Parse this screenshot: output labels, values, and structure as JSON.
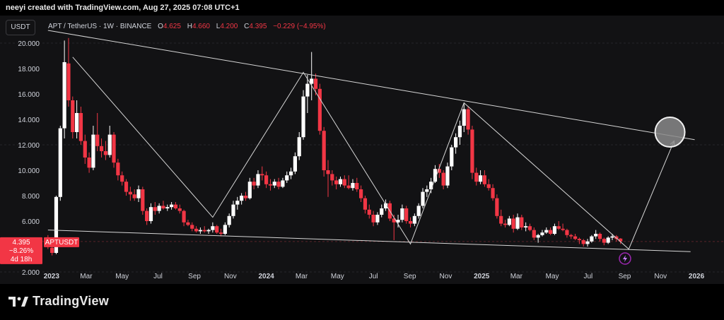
{
  "header": {
    "creator": "neeyi created with TradingView.com, Aug 27, 2025 07:08 UTC+1"
  },
  "toolbar": {
    "currency_label": "USDT"
  },
  "legend": {
    "symbol": "APT / TetherUS · 1W · BINANCE",
    "open_label": "O",
    "open_value": "4.625",
    "high_label": "H",
    "high_value": "4.660",
    "low_label": "L",
    "low_value": "4.200",
    "close_label": "C",
    "close_value": "4.395",
    "change": "−0.229 (−4.95%)"
  },
  "price_tag": {
    "price": "4.395",
    "change": "−8.26%",
    "countdown": "4d 18h",
    "ticker": "APTUSDT"
  },
  "footer": {
    "brand": "TradingView"
  },
  "colors": {
    "up": "#ffffff",
    "down": "#f23645",
    "background": "#121214",
    "grid": "#26262a",
    "pattern_lines": "#d6d6d6"
  },
  "chart_data": {
    "type": "candlestick",
    "title": "",
    "xlabel": "",
    "ylabel": "",
    "x_ticks": [
      "2023",
      "Mar",
      "May",
      "Jul",
      "Sep",
      "Nov",
      "2024",
      "Mar",
      "May",
      "Jul",
      "Sep",
      "Nov",
      "2025",
      "Mar",
      "May",
      "Jul",
      "Sep",
      "Nov",
      "2026"
    ],
    "y_ticks": [
      "20.000",
      "18.000",
      "16.000",
      "14.000",
      "12.000",
      "10.000",
      "8.000",
      "6.000",
      "2.000"
    ],
    "ylim": [
      1.5,
      20.5
    ],
    "xlim": [
      "2022-12-19",
      "2026-01-19"
    ],
    "grid": false,
    "last_price": 4.395,
    "candles": [
      {
        "t": "2022-12-26",
        "o": 4.6,
        "h": 4.9,
        "l": 3.8,
        "c": 4.0
      },
      {
        "t": "2023-01-02",
        "o": 3.9,
        "h": 4.2,
        "l": 3.3,
        "c": 3.5
      },
      {
        "t": "2023-01-09",
        "o": 3.5,
        "h": 8.0,
        "l": 3.4,
        "c": 7.9
      },
      {
        "t": "2023-01-16",
        "o": 7.9,
        "h": 13.5,
        "l": 7.6,
        "c": 13.3
      },
      {
        "t": "2023-01-23",
        "o": 13.3,
        "h": 20.2,
        "l": 12.5,
        "c": 18.5
      },
      {
        "t": "2023-01-30",
        "o": 18.4,
        "h": 20.4,
        "l": 15.0,
        "c": 15.5
      },
      {
        "t": "2023-02-06",
        "o": 15.5,
        "h": 15.8,
        "l": 12.5,
        "c": 13.0
      },
      {
        "t": "2023-02-13",
        "o": 13.0,
        "h": 15.5,
        "l": 12.5,
        "c": 14.5
      },
      {
        "t": "2023-02-20",
        "o": 14.5,
        "h": 15.0,
        "l": 12.0,
        "c": 12.3
      },
      {
        "t": "2023-02-27",
        "o": 12.3,
        "h": 12.8,
        "l": 10.5,
        "c": 11.0
      },
      {
        "t": "2023-03-06",
        "o": 11.0,
        "h": 11.4,
        "l": 9.8,
        "c": 10.2
      },
      {
        "t": "2023-03-13",
        "o": 10.2,
        "h": 13.5,
        "l": 10.0,
        "c": 12.8
      },
      {
        "t": "2023-03-20",
        "o": 12.8,
        "h": 14.5,
        "l": 11.5,
        "c": 11.9
      },
      {
        "t": "2023-03-27",
        "o": 11.9,
        "h": 12.5,
        "l": 11.0,
        "c": 11.5
      },
      {
        "t": "2023-04-03",
        "o": 11.5,
        "h": 12.3,
        "l": 10.8,
        "c": 11.2
      },
      {
        "t": "2023-04-10",
        "o": 11.2,
        "h": 13.5,
        "l": 11.0,
        "c": 12.8
      },
      {
        "t": "2023-04-17",
        "o": 12.8,
        "h": 13.0,
        "l": 10.2,
        "c": 10.6
      },
      {
        "t": "2023-04-24",
        "o": 10.6,
        "h": 10.9,
        "l": 9.2,
        "c": 9.6
      },
      {
        "t": "2023-05-01",
        "o": 9.6,
        "h": 9.9,
        "l": 8.8,
        "c": 9.1
      },
      {
        "t": "2023-05-08",
        "o": 9.1,
        "h": 9.3,
        "l": 8.0,
        "c": 8.3
      },
      {
        "t": "2023-05-15",
        "o": 8.3,
        "h": 8.7,
        "l": 7.6,
        "c": 8.1
      },
      {
        "t": "2023-05-22",
        "o": 8.1,
        "h": 8.5,
        "l": 7.6,
        "c": 7.8
      },
      {
        "t": "2023-05-29",
        "o": 7.8,
        "h": 8.8,
        "l": 7.5,
        "c": 8.5
      },
      {
        "t": "2023-06-05",
        "o": 8.5,
        "h": 8.7,
        "l": 6.5,
        "c": 6.8
      },
      {
        "t": "2023-06-12",
        "o": 6.8,
        "h": 7.0,
        "l": 5.7,
        "c": 6.0
      },
      {
        "t": "2023-06-19",
        "o": 6.0,
        "h": 7.4,
        "l": 5.8,
        "c": 7.1
      },
      {
        "t": "2023-06-26",
        "o": 7.1,
        "h": 7.5,
        "l": 6.5,
        "c": 6.8
      },
      {
        "t": "2023-07-03",
        "o": 6.8,
        "h": 7.4,
        "l": 6.6,
        "c": 7.2
      },
      {
        "t": "2023-07-10",
        "o": 7.2,
        "h": 7.6,
        "l": 6.9,
        "c": 7.0
      },
      {
        "t": "2023-07-17",
        "o": 7.0,
        "h": 7.3,
        "l": 6.8,
        "c": 7.1
      },
      {
        "t": "2023-07-24",
        "o": 7.1,
        "h": 7.5,
        "l": 6.9,
        "c": 7.3
      },
      {
        "t": "2023-07-31",
        "o": 7.3,
        "h": 7.5,
        "l": 6.9,
        "c": 7.0
      },
      {
        "t": "2023-08-07",
        "o": 7.0,
        "h": 7.3,
        "l": 6.6,
        "c": 6.8
      },
      {
        "t": "2023-08-14",
        "o": 6.8,
        "h": 6.9,
        "l": 5.6,
        "c": 5.9
      },
      {
        "t": "2023-08-21",
        "o": 5.9,
        "h": 6.1,
        "l": 5.6,
        "c": 5.7
      },
      {
        "t": "2023-08-28",
        "o": 5.7,
        "h": 5.9,
        "l": 5.2,
        "c": 5.4
      },
      {
        "t": "2023-09-04",
        "o": 5.4,
        "h": 5.6,
        "l": 5.1,
        "c": 5.2
      },
      {
        "t": "2023-09-11",
        "o": 5.2,
        "h": 5.5,
        "l": 5.0,
        "c": 5.3
      },
      {
        "t": "2023-09-18",
        "o": 5.3,
        "h": 5.6,
        "l": 5.1,
        "c": 5.2
      },
      {
        "t": "2023-09-25",
        "o": 5.2,
        "h": 5.4,
        "l": 5.0,
        "c": 5.3
      },
      {
        "t": "2023-10-02",
        "o": 5.3,
        "h": 5.9,
        "l": 5.1,
        "c": 5.6
      },
      {
        "t": "2023-10-09",
        "o": 5.6,
        "h": 5.7,
        "l": 5.0,
        "c": 5.1
      },
      {
        "t": "2023-10-16",
        "o": 5.1,
        "h": 5.4,
        "l": 4.8,
        "c": 5.0
      },
      {
        "t": "2023-10-23",
        "o": 5.0,
        "h": 5.9,
        "l": 4.9,
        "c": 5.7
      },
      {
        "t": "2023-10-30",
        "o": 5.7,
        "h": 6.6,
        "l": 5.5,
        "c": 6.4
      },
      {
        "t": "2023-11-06",
        "o": 6.4,
        "h": 7.6,
        "l": 6.2,
        "c": 7.3
      },
      {
        "t": "2023-11-13",
        "o": 7.3,
        "h": 7.9,
        "l": 6.9,
        "c": 7.6
      },
      {
        "t": "2023-11-20",
        "o": 7.6,
        "h": 8.2,
        "l": 7.3,
        "c": 8.0
      },
      {
        "t": "2023-11-27",
        "o": 8.0,
        "h": 8.3,
        "l": 7.6,
        "c": 7.8
      },
      {
        "t": "2023-12-04",
        "o": 7.8,
        "h": 9.4,
        "l": 7.7,
        "c": 9.1
      },
      {
        "t": "2023-12-11",
        "o": 9.1,
        "h": 9.4,
        "l": 8.5,
        "c": 8.8
      },
      {
        "t": "2023-12-18",
        "o": 8.8,
        "h": 10.0,
        "l": 8.6,
        "c": 9.7
      },
      {
        "t": "2023-12-25",
        "o": 9.7,
        "h": 10.3,
        "l": 9.2,
        "c": 9.6
      },
      {
        "t": "2024-01-01",
        "o": 9.6,
        "h": 9.9,
        "l": 8.6,
        "c": 8.9
      },
      {
        "t": "2024-01-08",
        "o": 8.9,
        "h": 9.3,
        "l": 8.4,
        "c": 8.8
      },
      {
        "t": "2024-01-15",
        "o": 8.8,
        "h": 9.3,
        "l": 8.6,
        "c": 9.1
      },
      {
        "t": "2024-01-22",
        "o": 9.1,
        "h": 9.4,
        "l": 8.5,
        "c": 8.7
      },
      {
        "t": "2024-01-29",
        "o": 8.7,
        "h": 9.4,
        "l": 8.6,
        "c": 9.2
      },
      {
        "t": "2024-02-05",
        "o": 9.2,
        "h": 9.9,
        "l": 9.0,
        "c": 9.6
      },
      {
        "t": "2024-02-12",
        "o": 9.6,
        "h": 10.2,
        "l": 9.3,
        "c": 9.9
      },
      {
        "t": "2024-02-19",
        "o": 9.9,
        "h": 11.4,
        "l": 9.7,
        "c": 11.1
      },
      {
        "t": "2024-02-26",
        "o": 11.1,
        "h": 13.0,
        "l": 10.8,
        "c": 12.6
      },
      {
        "t": "2024-03-04",
        "o": 12.6,
        "h": 16.3,
        "l": 12.4,
        "c": 15.8
      },
      {
        "t": "2024-03-11",
        "o": 15.8,
        "h": 17.5,
        "l": 14.5,
        "c": 16.8
      },
      {
        "t": "2024-03-18",
        "o": 16.8,
        "h": 19.3,
        "l": 15.5,
        "c": 17.2
      },
      {
        "t": "2024-03-25",
        "o": 17.2,
        "h": 17.6,
        "l": 15.9,
        "c": 16.4
      },
      {
        "t": "2024-04-01",
        "o": 16.4,
        "h": 16.8,
        "l": 12.8,
        "c": 13.1
      },
      {
        "t": "2024-04-08",
        "o": 13.1,
        "h": 13.4,
        "l": 9.5,
        "c": 10.0
      },
      {
        "t": "2024-04-15",
        "o": 10.0,
        "h": 10.8,
        "l": 7.9,
        "c": 9.7
      },
      {
        "t": "2024-04-22",
        "o": 9.7,
        "h": 10.0,
        "l": 8.8,
        "c": 9.2
      },
      {
        "t": "2024-04-29",
        "o": 9.2,
        "h": 9.5,
        "l": 8.5,
        "c": 8.9
      },
      {
        "t": "2024-05-06",
        "o": 8.9,
        "h": 9.5,
        "l": 8.7,
        "c": 9.3
      },
      {
        "t": "2024-05-13",
        "o": 9.3,
        "h": 9.6,
        "l": 8.6,
        "c": 8.8
      },
      {
        "t": "2024-05-20",
        "o": 8.8,
        "h": 9.6,
        "l": 8.5,
        "c": 8.6
      },
      {
        "t": "2024-05-27",
        "o": 8.6,
        "h": 9.3,
        "l": 8.4,
        "c": 9.0
      },
      {
        "t": "2024-06-03",
        "o": 9.0,
        "h": 9.4,
        "l": 8.3,
        "c": 8.5
      },
      {
        "t": "2024-06-10",
        "o": 8.5,
        "h": 8.8,
        "l": 7.5,
        "c": 7.8
      },
      {
        "t": "2024-06-17",
        "o": 7.8,
        "h": 8.0,
        "l": 6.6,
        "c": 6.9
      },
      {
        "t": "2024-06-24",
        "o": 6.9,
        "h": 7.3,
        "l": 6.2,
        "c": 6.5
      },
      {
        "t": "2024-07-01",
        "o": 6.5,
        "h": 6.8,
        "l": 5.6,
        "c": 5.9
      },
      {
        "t": "2024-07-08",
        "o": 5.9,
        "h": 6.7,
        "l": 5.7,
        "c": 6.5
      },
      {
        "t": "2024-07-15",
        "o": 6.5,
        "h": 7.3,
        "l": 6.3,
        "c": 7.0
      },
      {
        "t": "2024-07-22",
        "o": 7.0,
        "h": 7.7,
        "l": 6.8,
        "c": 7.4
      },
      {
        "t": "2024-07-29",
        "o": 7.4,
        "h": 7.6,
        "l": 6.0,
        "c": 6.2
      },
      {
        "t": "2024-08-05",
        "o": 6.2,
        "h": 6.5,
        "l": 4.5,
        "c": 5.9
      },
      {
        "t": "2024-08-12",
        "o": 5.9,
        "h": 6.5,
        "l": 5.5,
        "c": 6.1
      },
      {
        "t": "2024-08-19",
        "o": 6.1,
        "h": 7.3,
        "l": 5.9,
        "c": 7.0
      },
      {
        "t": "2024-08-26",
        "o": 7.0,
        "h": 7.2,
        "l": 5.8,
        "c": 6.0
      },
      {
        "t": "2024-09-02",
        "o": 6.0,
        "h": 6.3,
        "l": 5.5,
        "c": 5.8
      },
      {
        "t": "2024-09-09",
        "o": 5.8,
        "h": 6.6,
        "l": 5.6,
        "c": 6.4
      },
      {
        "t": "2024-09-16",
        "o": 6.4,
        "h": 7.4,
        "l": 6.2,
        "c": 7.2
      },
      {
        "t": "2024-09-23",
        "o": 7.2,
        "h": 8.6,
        "l": 7.0,
        "c": 8.3
      },
      {
        "t": "2024-09-30",
        "o": 8.3,
        "h": 8.8,
        "l": 7.9,
        "c": 8.5
      },
      {
        "t": "2024-10-07",
        "o": 8.5,
        "h": 9.4,
        "l": 8.2,
        "c": 9.1
      },
      {
        "t": "2024-10-14",
        "o": 9.1,
        "h": 10.4,
        "l": 9.0,
        "c": 10.1
      },
      {
        "t": "2024-10-21",
        "o": 10.1,
        "h": 10.5,
        "l": 9.4,
        "c": 9.8
      },
      {
        "t": "2024-10-28",
        "o": 9.8,
        "h": 10.0,
        "l": 8.5,
        "c": 8.8
      },
      {
        "t": "2024-11-04",
        "o": 8.8,
        "h": 10.6,
        "l": 8.6,
        "c": 10.3
      },
      {
        "t": "2024-11-11",
        "o": 10.3,
        "h": 12.0,
        "l": 10.0,
        "c": 11.8
      },
      {
        "t": "2024-11-18",
        "o": 11.8,
        "h": 12.9,
        "l": 11.3,
        "c": 12.6
      },
      {
        "t": "2024-11-25",
        "o": 12.6,
        "h": 13.9,
        "l": 12.0,
        "c": 13.5
      },
      {
        "t": "2024-12-02",
        "o": 13.5,
        "h": 15.3,
        "l": 13.0,
        "c": 14.8
      },
      {
        "t": "2024-12-09",
        "o": 14.8,
        "h": 15.0,
        "l": 12.8,
        "c": 13.2
      },
      {
        "t": "2024-12-16",
        "o": 13.2,
        "h": 13.5,
        "l": 9.3,
        "c": 9.8
      },
      {
        "t": "2024-12-23",
        "o": 9.8,
        "h": 10.2,
        "l": 8.8,
        "c": 9.1
      },
      {
        "t": "2024-12-30",
        "o": 9.1,
        "h": 10.0,
        "l": 8.9,
        "c": 9.6
      },
      {
        "t": "2025-01-06",
        "o": 9.6,
        "h": 10.0,
        "l": 8.7,
        "c": 8.9
      },
      {
        "t": "2025-01-13",
        "o": 8.9,
        "h": 9.3,
        "l": 8.4,
        "c": 8.6
      },
      {
        "t": "2025-01-20",
        "o": 8.6,
        "h": 8.9,
        "l": 7.6,
        "c": 7.8
      },
      {
        "t": "2025-01-27",
        "o": 7.8,
        "h": 8.1,
        "l": 6.2,
        "c": 6.4
      },
      {
        "t": "2025-02-03",
        "o": 6.4,
        "h": 6.9,
        "l": 5.6,
        "c": 5.8
      },
      {
        "t": "2025-02-10",
        "o": 5.8,
        "h": 6.1,
        "l": 5.5,
        "c": 5.7
      },
      {
        "t": "2025-02-17",
        "o": 5.7,
        "h": 6.4,
        "l": 5.6,
        "c": 6.2
      },
      {
        "t": "2025-02-24",
        "o": 6.2,
        "h": 6.5,
        "l": 5.1,
        "c": 5.4
      },
      {
        "t": "2025-03-03",
        "o": 5.4,
        "h": 6.6,
        "l": 5.3,
        "c": 6.3
      },
      {
        "t": "2025-03-10",
        "o": 6.3,
        "h": 6.5,
        "l": 5.3,
        "c": 5.5
      },
      {
        "t": "2025-03-17",
        "o": 5.5,
        "h": 5.9,
        "l": 5.2,
        "c": 5.6
      },
      {
        "t": "2025-03-24",
        "o": 5.6,
        "h": 5.8,
        "l": 5.2,
        "c": 5.3
      },
      {
        "t": "2025-03-31",
        "o": 5.3,
        "h": 5.5,
        "l": 4.5,
        "c": 4.7
      },
      {
        "t": "2025-04-07",
        "o": 4.7,
        "h": 5.0,
        "l": 4.3,
        "c": 4.9
      },
      {
        "t": "2025-04-14",
        "o": 4.9,
        "h": 5.3,
        "l": 4.8,
        "c": 5.1
      },
      {
        "t": "2025-04-21",
        "o": 5.1,
        "h": 5.5,
        "l": 5.0,
        "c": 5.3
      },
      {
        "t": "2025-04-28",
        "o": 5.3,
        "h": 5.5,
        "l": 4.9,
        "c": 5.0
      },
      {
        "t": "2025-05-05",
        "o": 5.0,
        "h": 5.8,
        "l": 4.9,
        "c": 5.6
      },
      {
        "t": "2025-05-12",
        "o": 5.6,
        "h": 6.0,
        "l": 5.3,
        "c": 5.4
      },
      {
        "t": "2025-05-19",
        "o": 5.4,
        "h": 5.8,
        "l": 5.2,
        "c": 5.3
      },
      {
        "t": "2025-05-26",
        "o": 5.3,
        "h": 5.4,
        "l": 4.7,
        "c": 4.9
      },
      {
        "t": "2025-06-02",
        "o": 4.9,
        "h": 5.0,
        "l": 4.6,
        "c": 4.8
      },
      {
        "t": "2025-06-09",
        "o": 4.8,
        "h": 5.0,
        "l": 4.5,
        "c": 4.6
      },
      {
        "t": "2025-06-16",
        "o": 4.6,
        "h": 4.7,
        "l": 4.2,
        "c": 4.5
      },
      {
        "t": "2025-06-23",
        "o": 4.5,
        "h": 4.6,
        "l": 4.0,
        "c": 4.2
      },
      {
        "t": "2025-06-30",
        "o": 4.2,
        "h": 4.6,
        "l": 4.0,
        "c": 4.4
      },
      {
        "t": "2025-07-07",
        "o": 4.4,
        "h": 4.9,
        "l": 4.3,
        "c": 4.8
      },
      {
        "t": "2025-07-14",
        "o": 4.8,
        "h": 5.3,
        "l": 4.6,
        "c": 5.0
      },
      {
        "t": "2025-07-21",
        "o": 5.0,
        "h": 5.1,
        "l": 4.4,
        "c": 4.6
      },
      {
        "t": "2025-07-28",
        "o": 4.6,
        "h": 4.7,
        "l": 4.1,
        "c": 4.3
      },
      {
        "t": "2025-08-04",
        "o": 4.3,
        "h": 4.8,
        "l": 4.2,
        "c": 4.7
      },
      {
        "t": "2025-08-11",
        "o": 4.7,
        "h": 5.0,
        "l": 4.5,
        "c": 4.8
      },
      {
        "t": "2025-08-18",
        "o": 4.8,
        "h": 4.9,
        "l": 4.4,
        "c": 4.6
      },
      {
        "t": "2025-08-25",
        "o": 4.625,
        "h": 4.66,
        "l": 4.2,
        "c": 4.395
      }
    ],
    "drawings": [
      {
        "name": "upper-trendline",
        "points": [
          [
            "2022-12-26",
            21.0
          ],
          [
            "2025-12-29",
            12.4
          ]
        ]
      },
      {
        "name": "lower-trendline",
        "points": [
          [
            "2022-12-26",
            5.3
          ],
          [
            "2025-12-22",
            3.6
          ]
        ]
      },
      {
        "name": "zigzag-path",
        "points": [
          [
            "2023-02-06",
            18.9
          ],
          [
            "2023-10-02",
            6.3
          ],
          [
            "2024-03-04",
            17.7
          ],
          [
            "2024-09-02",
            4.2
          ],
          [
            "2024-12-02",
            15.3
          ],
          [
            "2025-09-08",
            3.8
          ],
          [
            "2025-11-24",
            12.3
          ]
        ]
      },
      {
        "name": "target-circle",
        "points": [
          [
            "2025-11-17",
            13.0
          ]
        ]
      }
    ]
  }
}
